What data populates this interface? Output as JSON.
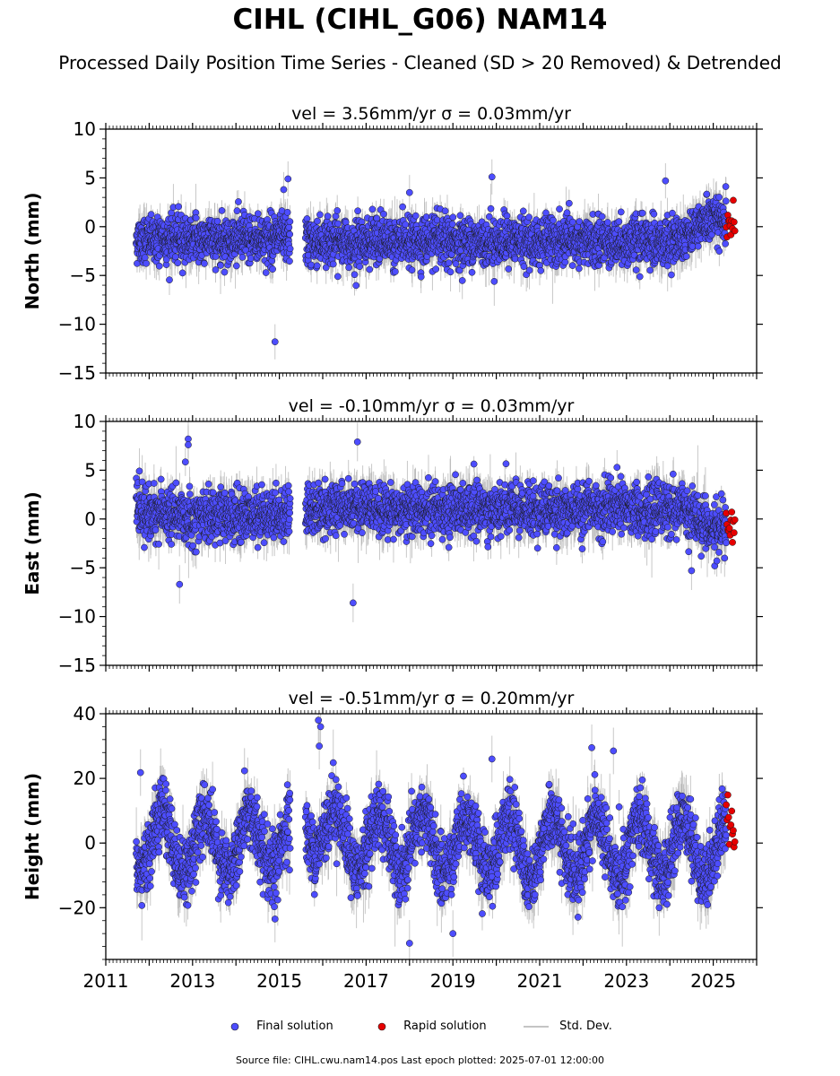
{
  "title": "CIHL (CIHL_G06) NAM14",
  "subtitle": "Processed Daily Position Time Series - Cleaned (SD > 20 Removed) & Detrended",
  "footer": "Source file: CIHL.cwu.nam14.pos  Last epoch plotted: 2025-07-01 12:00:00",
  "colors": {
    "final": "#4d4dff",
    "rapid": "#e60000",
    "std": "#b0b0b0",
    "outline": "#1a1a1a"
  },
  "legend": {
    "final_label": "Final solution",
    "rapid_label": "Rapid solution",
    "std_label": "Std. Dev."
  },
  "chart_data": [
    {
      "type": "scatter",
      "name": "north",
      "panel_title": "vel = 3.56mm/yr   σ = 0.03mm/yr",
      "ylabel": "North (mm)",
      "xlim": [
        2011,
        2026
      ],
      "ylim": [
        -15,
        10
      ],
      "yticks": [
        -15,
        -10,
        -5,
        0,
        5,
        10
      ],
      "xticklabels": [],
      "data_start": 2011.7,
      "gap": [
        2015.25,
        2015.6
      ],
      "rapid_range": [
        2025.3,
        2025.5
      ],
      "trend_segments": [
        [
          2011.7,
          -1.3
        ],
        [
          2015.25,
          -1.2
        ],
        [
          2015.6,
          -1.5
        ],
        [
          2024.0,
          -1.6
        ],
        [
          2025.0,
          1.0
        ],
        [
          2025.5,
          0.2
        ]
      ],
      "noise_sd": 1.2,
      "error_sd": 1.0,
      "outliers": [
        [
          2014.9,
          -11.8
        ],
        [
          2015.1,
          3.8
        ],
        [
          2015.2,
          4.9
        ],
        [
          2019.9,
          5.1
        ],
        [
          2023.9,
          4.7
        ],
        [
          2018.0,
          3.5
        ]
      ]
    },
    {
      "type": "scatter",
      "name": "east",
      "panel_title": "vel = -0.10mm/yr   σ = 0.03mm/yr",
      "ylabel": "East (mm)",
      "xlim": [
        2011,
        2026
      ],
      "ylim": [
        -15,
        10
      ],
      "yticks": [
        -15,
        -10,
        -5,
        0,
        5,
        10
      ],
      "xticklabels": [],
      "data_start": 2011.7,
      "gap": [
        2015.25,
        2015.6
      ],
      "rapid_range": [
        2025.3,
        2025.5
      ],
      "trend_segments": [
        [
          2011.7,
          0.8
        ],
        [
          2013.0,
          0.2
        ],
        [
          2015.25,
          0.5
        ],
        [
          2015.6,
          1.0
        ],
        [
          2024.3,
          1.0
        ],
        [
          2025.0,
          -1.2
        ],
        [
          2025.5,
          -0.6
        ]
      ],
      "noise_sd": 1.3,
      "error_sd": 1.1,
      "outliers": [
        [
          2012.9,
          8.2
        ],
        [
          2012.9,
          7.6
        ],
        [
          2016.8,
          7.9
        ],
        [
          2016.7,
          -8.6
        ],
        [
          2012.7,
          -6.7
        ],
        [
          2024.5,
          -5.3
        ]
      ]
    },
    {
      "type": "scatter",
      "name": "height",
      "panel_title": "vel = -0.51mm/yr   σ = 0.20mm/yr",
      "ylabel": "Height (mm)",
      "xlim": [
        2011,
        2026
      ],
      "ylim": [
        -36,
        40
      ],
      "yticks": [
        -20,
        0,
        20,
        40
      ],
      "xticklabels": [
        "2011",
        "2013",
        "2015",
        "2017",
        "2019",
        "2021",
        "2023",
        "2025"
      ],
      "data_start": 2011.7,
      "gap": [
        2015.25,
        2015.6
      ],
      "rapid_range": [
        2025.3,
        2025.5
      ],
      "trend_segments": [
        [
          2011.7,
          0.0
        ],
        [
          2015.25,
          0.0
        ],
        [
          2015.6,
          8.0
        ],
        [
          2016.5,
          0.0
        ],
        [
          2025.5,
          -2.0
        ]
      ],
      "seasonal_amplitude": 9,
      "seasonal_phase": 0.05,
      "noise_sd": 5.0,
      "error_sd": 4.0,
      "outliers": [
        [
          2015.9,
          38.0
        ],
        [
          2015.95,
          36.0
        ],
        [
          2015.92,
          30.0
        ],
        [
          2011.8,
          21.8
        ],
        [
          2019.9,
          26.0
        ],
        [
          2022.7,
          28.5
        ],
        [
          2022.2,
          29.5
        ],
        [
          2018.0,
          -31.0
        ],
        [
          2019.0,
          -28.0
        ],
        [
          2014.9,
          -23.5
        ]
      ]
    }
  ]
}
